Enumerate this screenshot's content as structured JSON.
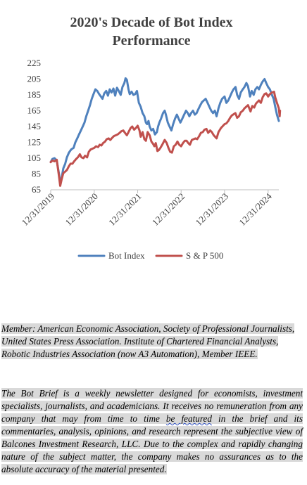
{
  "chart_data": {
    "type": "line",
    "title": "2020's Decade of Bot Index Performance",
    "title_lines": [
      "2020's Decade of Bot Index",
      "Performance"
    ],
    "xlabel": "",
    "ylabel": "",
    "ylim": [
      65,
      225
    ],
    "yticks": [
      65,
      85,
      105,
      125,
      145,
      165,
      185,
      205,
      225
    ],
    "xlim": [
      "2019-12-31",
      "2025-03-31"
    ],
    "xticks": [
      "12/31/2019",
      "12/31/2020",
      "12/31/2021",
      "12/31/2022",
      "12/31/2023",
      "12/31/2024"
    ],
    "grid": false,
    "legend": "bottom",
    "series": [
      {
        "name": "Bot Index",
        "color": "#4f81bd",
        "points": [
          [
            "2019-12-31",
            100
          ],
          [
            "2020-01-15",
            104
          ],
          [
            "2020-02-01",
            105
          ],
          [
            "2020-02-20",
            102
          ],
          [
            "2020-03-10",
            85
          ],
          [
            "2020-03-20",
            73
          ],
          [
            "2020-04-01",
            80
          ],
          [
            "2020-04-15",
            92
          ],
          [
            "2020-05-01",
            98
          ],
          [
            "2020-05-15",
            106
          ],
          [
            "2020-06-01",
            112
          ],
          [
            "2020-06-20",
            116
          ],
          [
            "2020-07-10",
            118
          ],
          [
            "2020-07-25",
            125
          ],
          [
            "2020-08-10",
            130
          ],
          [
            "2020-08-25",
            135
          ],
          [
            "2020-09-10",
            140
          ],
          [
            "2020-09-25",
            145
          ],
          [
            "2020-10-10",
            150
          ],
          [
            "2020-10-25",
            158
          ],
          [
            "2020-11-10",
            165
          ],
          [
            "2020-11-25",
            172
          ],
          [
            "2020-12-10",
            180
          ],
          [
            "2020-12-25",
            186
          ],
          [
            "2021-01-10",
            192
          ],
          [
            "2021-01-25",
            190
          ],
          [
            "2021-02-10",
            186
          ],
          [
            "2021-02-25",
            183
          ],
          [
            "2021-03-10",
            180
          ],
          [
            "2021-03-25",
            187
          ],
          [
            "2021-04-10",
            190
          ],
          [
            "2021-04-25",
            184
          ],
          [
            "2021-05-10",
            192
          ],
          [
            "2021-05-25",
            188
          ],
          [
            "2021-06-10",
            193
          ],
          [
            "2021-06-25",
            184
          ],
          [
            "2021-07-10",
            194
          ],
          [
            "2021-07-25",
            190
          ],
          [
            "2021-08-10",
            185
          ],
          [
            "2021-08-25",
            195
          ],
          [
            "2021-09-10",
            200
          ],
          [
            "2021-09-20",
            206
          ],
          [
            "2021-10-01",
            204
          ],
          [
            "2021-10-15",
            192
          ],
          [
            "2021-10-25",
            186
          ],
          [
            "2021-11-10",
            189
          ],
          [
            "2021-11-25",
            185
          ],
          [
            "2021-12-10",
            186
          ],
          [
            "2021-12-25",
            190
          ],
          [
            "2022-01-10",
            175
          ],
          [
            "2022-01-25",
            170
          ],
          [
            "2022-02-10",
            162
          ],
          [
            "2022-02-25",
            158
          ],
          [
            "2022-03-10",
            150
          ],
          [
            "2022-03-20",
            148
          ],
          [
            "2022-04-01",
            152
          ],
          [
            "2022-04-10",
            145
          ],
          [
            "2022-04-25",
            140
          ],
          [
            "2022-05-10",
            142
          ],
          [
            "2022-05-25",
            135
          ],
          [
            "2022-06-10",
            138
          ],
          [
            "2022-06-20",
            145
          ],
          [
            "2022-07-01",
            150
          ],
          [
            "2022-07-15",
            155
          ],
          [
            "2022-08-01",
            162
          ],
          [
            "2022-08-15",
            165
          ],
          [
            "2022-08-25",
            160
          ],
          [
            "2022-09-10",
            150
          ],
          [
            "2022-09-25",
            145
          ],
          [
            "2022-10-10",
            140
          ],
          [
            "2022-10-25",
            148
          ],
          [
            "2022-11-10",
            155
          ],
          [
            "2022-11-25",
            160
          ],
          [
            "2022-12-10",
            155
          ],
          [
            "2022-12-25",
            150
          ],
          [
            "2023-01-10",
            155
          ],
          [
            "2023-01-25",
            160
          ],
          [
            "2023-02-10",
            165
          ],
          [
            "2023-02-25",
            162
          ],
          [
            "2023-03-10",
            158
          ],
          [
            "2023-03-25",
            162
          ],
          [
            "2023-04-10",
            165
          ],
          [
            "2023-04-25",
            160
          ],
          [
            "2023-05-10",
            162
          ],
          [
            "2023-05-25",
            167
          ],
          [
            "2023-06-10",
            172
          ],
          [
            "2023-06-25",
            176
          ],
          [
            "2023-07-10",
            178
          ],
          [
            "2023-07-25",
            180
          ],
          [
            "2023-08-10",
            175
          ],
          [
            "2023-08-25",
            170
          ],
          [
            "2023-09-10",
            165
          ],
          [
            "2023-09-25",
            162
          ],
          [
            "2023-10-10",
            165
          ],
          [
            "2023-10-25",
            158
          ],
          [
            "2023-11-10",
            168
          ],
          [
            "2023-11-25",
            175
          ],
          [
            "2023-12-10",
            180
          ],
          [
            "2023-12-31",
            183
          ],
          [
            "2024-01-15",
            175
          ],
          [
            "2024-01-31",
            178
          ],
          [
            "2024-02-15",
            183
          ],
          [
            "2024-03-01",
            188
          ],
          [
            "2024-03-15",
            192
          ],
          [
            "2024-04-01",
            195
          ],
          [
            "2024-04-15",
            185
          ],
          [
            "2024-05-01",
            180
          ],
          [
            "2024-05-15",
            188
          ],
          [
            "2024-06-01",
            192
          ],
          [
            "2024-06-15",
            195
          ],
          [
            "2024-07-01",
            200
          ],
          [
            "2024-07-15",
            196
          ],
          [
            "2024-08-01",
            183
          ],
          [
            "2024-08-15",
            190
          ],
          [
            "2024-09-01",
            185
          ],
          [
            "2024-09-15",
            192
          ],
          [
            "2024-10-01",
            195
          ],
          [
            "2024-10-15",
            192
          ],
          [
            "2024-11-01",
            198
          ],
          [
            "2024-11-15",
            202
          ],
          [
            "2024-12-01",
            205
          ],
          [
            "2024-12-15",
            200
          ],
          [
            "2024-12-31",
            195
          ],
          [
            "2025-01-15",
            192
          ],
          [
            "2025-02-01",
            185
          ],
          [
            "2025-02-15",
            180
          ],
          [
            "2025-03-01",
            170
          ],
          [
            "2025-03-15",
            160
          ],
          [
            "2025-03-31",
            152
          ]
        ]
      },
      {
        "name": "S & P 500",
        "color": "#c0504d",
        "points": [
          [
            "2019-12-31",
            100
          ],
          [
            "2020-01-15",
            102
          ],
          [
            "2020-02-01",
            101
          ],
          [
            "2020-02-20",
            103
          ],
          [
            "2020-03-10",
            82
          ],
          [
            "2020-03-20",
            70
          ],
          [
            "2020-04-01",
            78
          ],
          [
            "2020-04-15",
            86
          ],
          [
            "2020-05-01",
            88
          ],
          [
            "2020-05-15",
            90
          ],
          [
            "2020-06-01",
            95
          ],
          [
            "2020-06-15",
            98
          ],
          [
            "2020-07-01",
            98
          ],
          [
            "2020-07-15",
            101
          ],
          [
            "2020-08-01",
            104
          ],
          [
            "2020-08-15",
            106
          ],
          [
            "2020-09-01",
            110
          ],
          [
            "2020-09-15",
            106
          ],
          [
            "2020-10-01",
            105
          ],
          [
            "2020-10-15",
            108
          ],
          [
            "2020-11-01",
            106
          ],
          [
            "2020-11-15",
            113
          ],
          [
            "2020-12-01",
            116
          ],
          [
            "2020-12-31",
            118
          ],
          [
            "2021-01-15",
            120
          ],
          [
            "2021-02-01",
            119
          ],
          [
            "2021-02-15",
            122
          ],
          [
            "2021-03-01",
            121
          ],
          [
            "2021-03-15",
            124
          ],
          [
            "2021-04-01",
            126
          ],
          [
            "2021-04-15",
            129
          ],
          [
            "2021-05-01",
            130
          ],
          [
            "2021-05-15",
            128
          ],
          [
            "2021-06-01",
            131
          ],
          [
            "2021-06-15",
            133
          ],
          [
            "2021-07-01",
            134
          ],
          [
            "2021-07-15",
            135
          ],
          [
            "2021-08-01",
            137
          ],
          [
            "2021-08-15",
            139
          ],
          [
            "2021-09-01",
            140
          ],
          [
            "2021-09-15",
            137
          ],
          [
            "2021-10-01",
            134
          ],
          [
            "2021-10-15",
            138
          ],
          [
            "2021-11-01",
            143
          ],
          [
            "2021-11-15",
            145
          ],
          [
            "2021-12-01",
            141
          ],
          [
            "2021-12-15",
            143
          ],
          [
            "2021-12-31",
            146
          ],
          [
            "2022-01-15",
            140
          ],
          [
            "2022-01-25",
            132
          ],
          [
            "2022-02-10",
            138
          ],
          [
            "2022-02-25",
            129
          ],
          [
            "2022-03-10",
            127
          ],
          [
            "2022-03-25",
            138
          ],
          [
            "2022-04-10",
            134
          ],
          [
            "2022-04-25",
            126
          ],
          [
            "2022-05-10",
            123
          ],
          [
            "2022-05-20",
            120
          ],
          [
            "2022-06-01",
            124
          ],
          [
            "2022-06-15",
            114
          ],
          [
            "2022-06-25",
            115
          ],
          [
            "2022-07-10",
            118
          ],
          [
            "2022-07-25",
            122
          ],
          [
            "2022-08-15",
            128
          ],
          [
            "2022-09-01",
            124
          ],
          [
            "2022-09-15",
            118
          ],
          [
            "2022-09-30",
            113
          ],
          [
            "2022-10-15",
            112
          ],
          [
            "2022-10-31",
            120
          ],
          [
            "2022-11-15",
            122
          ],
          [
            "2022-11-30",
            126
          ],
          [
            "2022-12-15",
            122
          ],
          [
            "2022-12-31",
            120
          ],
          [
            "2023-01-15",
            124
          ],
          [
            "2023-01-31",
            127
          ],
          [
            "2023-02-15",
            127
          ],
          [
            "2023-03-01",
            124
          ],
          [
            "2023-03-15",
            122
          ],
          [
            "2023-03-31",
            128
          ],
          [
            "2023-04-15",
            129
          ],
          [
            "2023-05-01",
            130
          ],
          [
            "2023-05-15",
            129
          ],
          [
            "2023-06-01",
            133
          ],
          [
            "2023-06-15",
            137
          ],
          [
            "2023-07-01",
            138
          ],
          [
            "2023-07-15",
            141
          ],
          [
            "2023-08-01",
            142
          ],
          [
            "2023-08-15",
            137
          ],
          [
            "2023-09-01",
            140
          ],
          [
            "2023-09-15",
            138
          ],
          [
            "2023-10-01",
            134
          ],
          [
            "2023-10-25",
            130
          ],
          [
            "2023-11-10",
            138
          ],
          [
            "2023-11-30",
            143
          ],
          [
            "2023-12-31",
            148
          ],
          [
            "2024-01-15",
            149
          ],
          [
            "2024-01-31",
            152
          ],
          [
            "2024-02-15",
            156
          ],
          [
            "2024-03-01",
            159
          ],
          [
            "2024-03-31",
            162
          ],
          [
            "2024-04-15",
            156
          ],
          [
            "2024-04-30",
            158
          ],
          [
            "2024-05-15",
            163
          ],
          [
            "2024-06-01",
            165
          ],
          [
            "2024-06-15",
            168
          ],
          [
            "2024-07-15",
            172
          ],
          [
            "2024-08-05",
            164
          ],
          [
            "2024-08-20",
            171
          ],
          [
            "2024-09-05",
            169
          ],
          [
            "2024-09-20",
            174
          ],
          [
            "2024-10-15",
            178
          ],
          [
            "2024-10-31",
            175
          ],
          [
            "2024-11-15",
            182
          ],
          [
            "2024-12-01",
            186
          ],
          [
            "2024-12-15",
            187
          ],
          [
            "2024-12-31",
            183
          ],
          [
            "2025-01-15",
            186
          ],
          [
            "2025-02-01",
            188
          ],
          [
            "2025-02-19",
            189
          ],
          [
            "2025-03-01",
            182
          ],
          [
            "2025-03-15",
            175
          ],
          [
            "2025-03-31",
            168
          ],
          [
            "2025-04-07",
            158
          ],
          [
            "2025-04-10",
            165
          ]
        ]
      }
    ]
  },
  "notes": {
    "members": "Member: American Economic Association, Society of Professional Journalists, United States Press Association. Institute of Chartered Financial Analysts, Robotic Industries Association (now A3 Automation), Member IEEE.",
    "about_before": "The Bot Brief is a weekly newsletter designed for economists, investment specialists, journalists, and academicians. It receives no remuneration from any company that may from time to time ",
    "about_marked": "be featured",
    "about_after": " in the brief and its commentaries, analysis, opinions, and research represent the subjective view of Balcones Investment Research, LLC. Due to the complex and rapidly changing nature of the subject matter, the company makes no assurances as to the absolute accuracy of the material presented."
  }
}
